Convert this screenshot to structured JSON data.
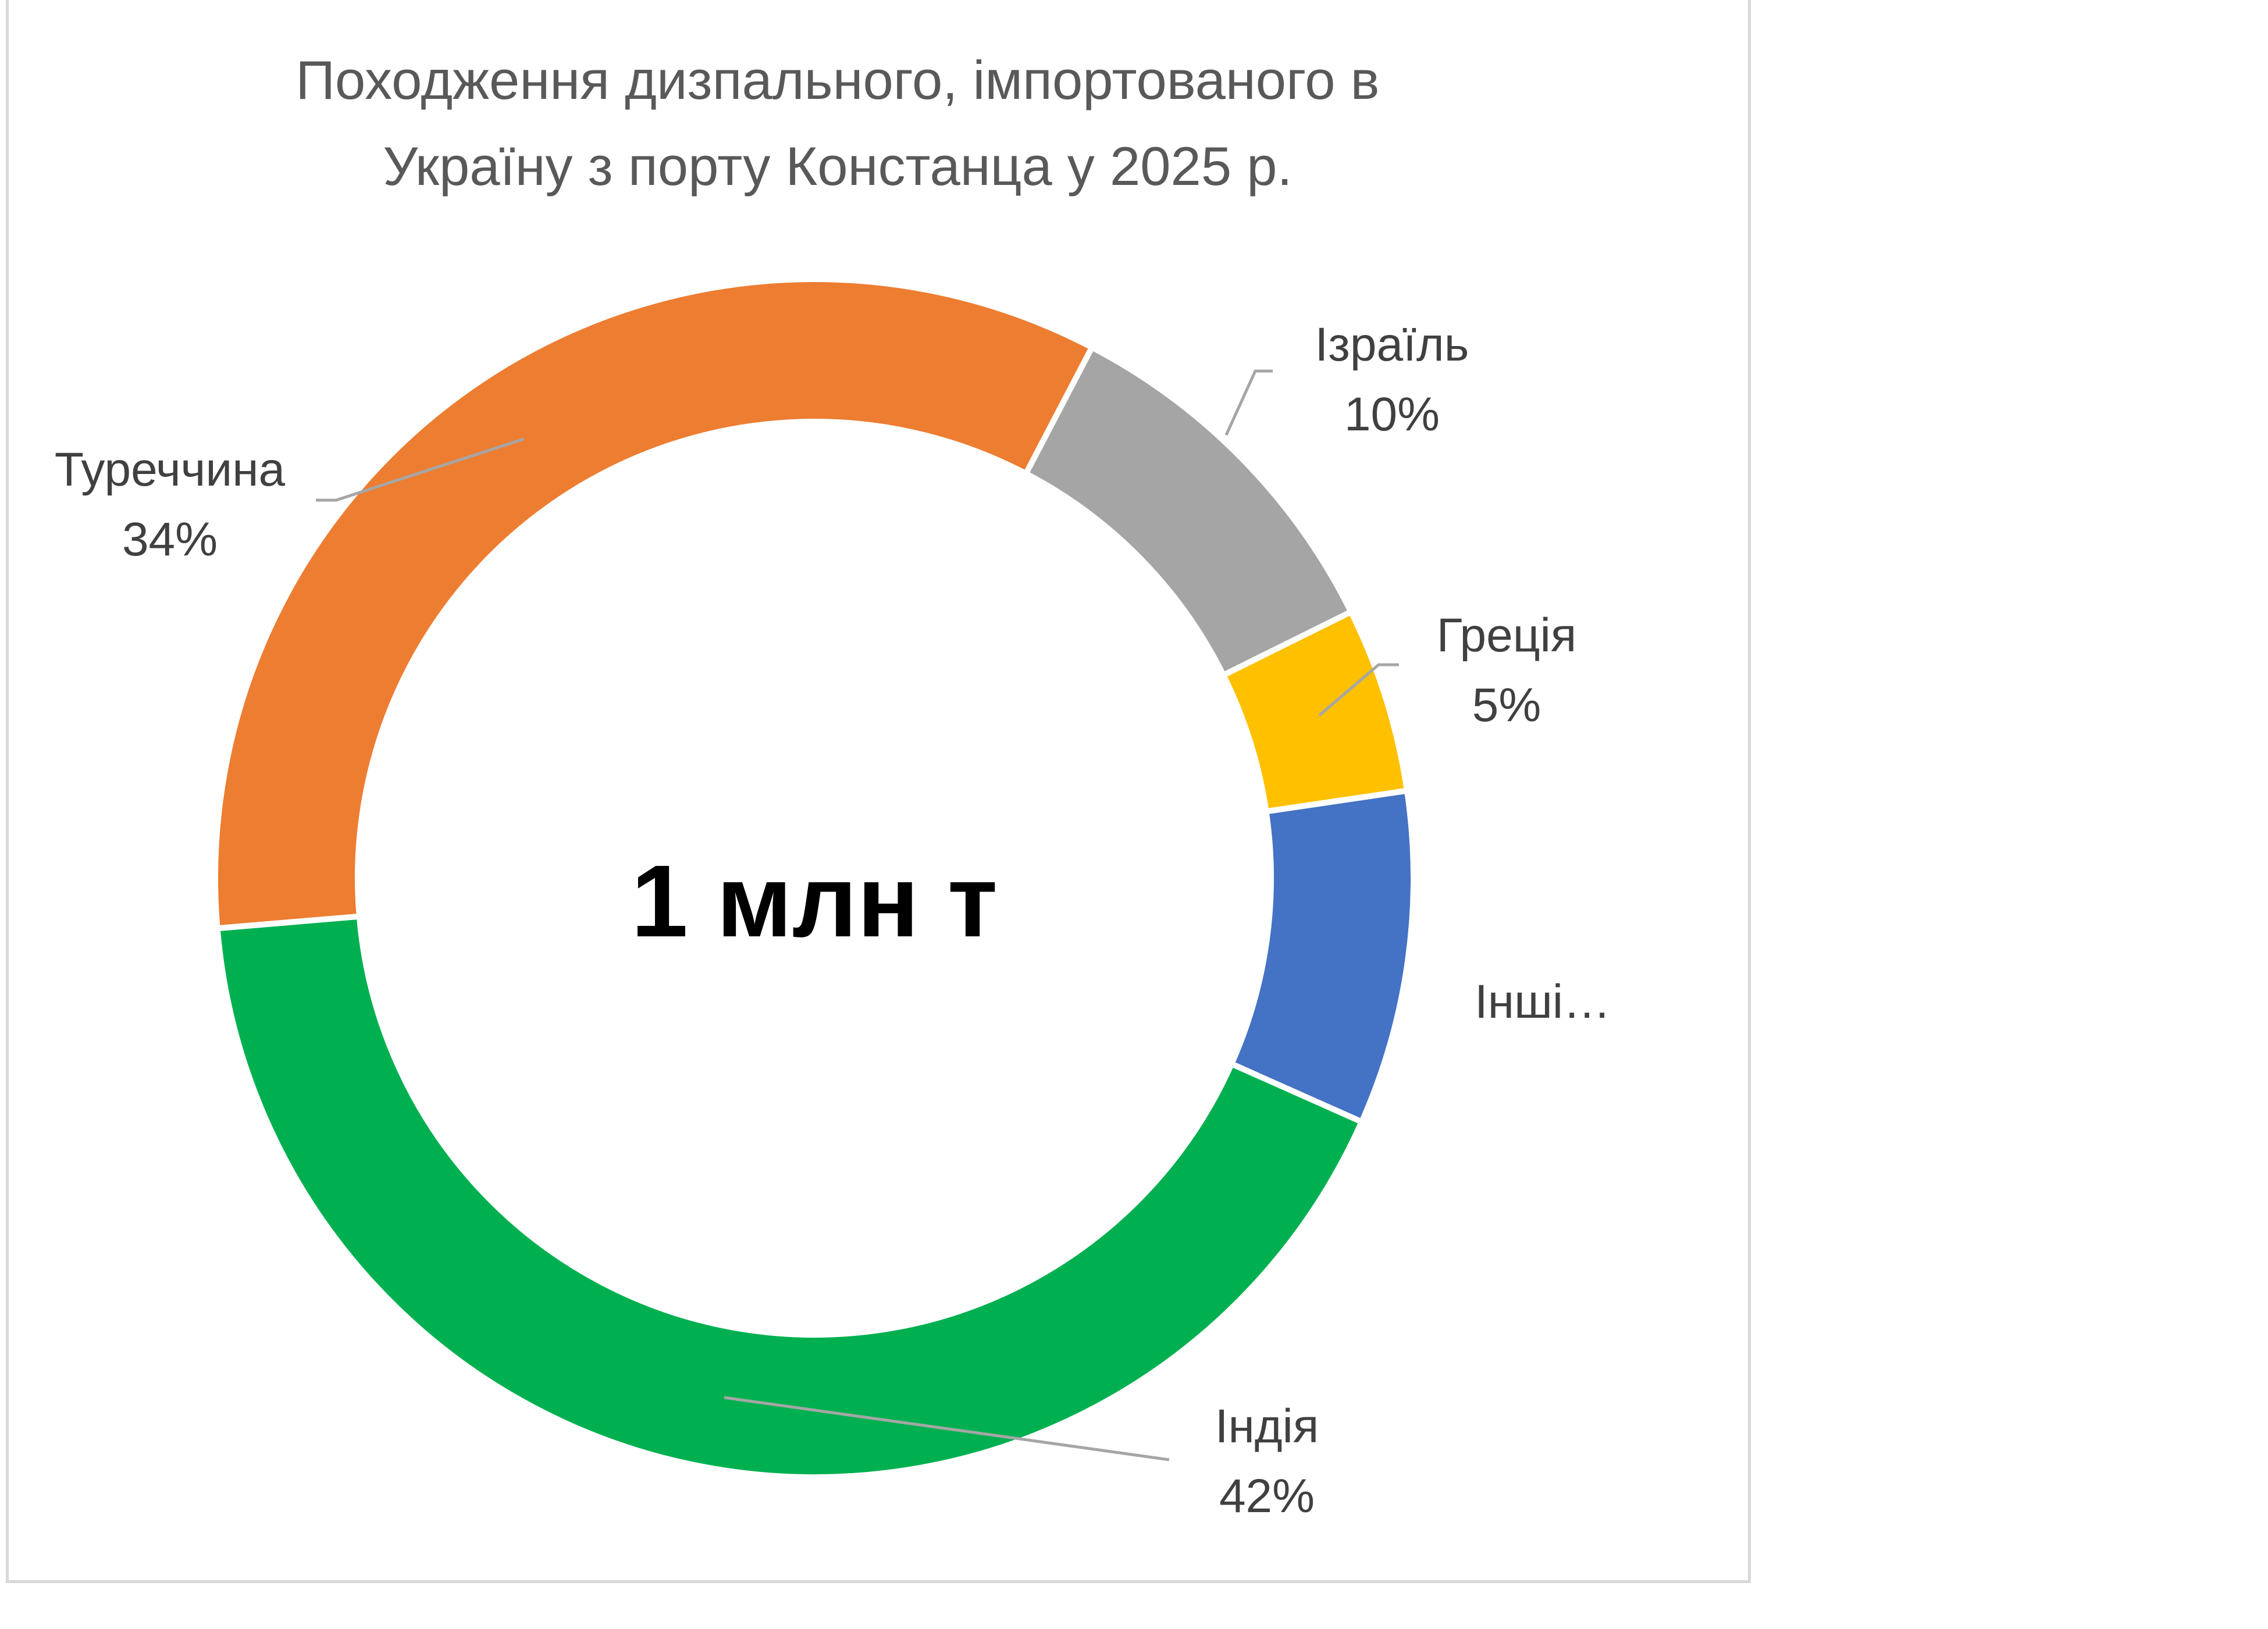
{
  "chart_data": {
    "type": "pie",
    "variant": "donut",
    "title_lines": [
      "Походження дизпального, імпортованого в",
      "Україну з порту Констанца у 2025 р."
    ],
    "center_label": "1 млн т",
    "start_angle_deg": 27.6,
    "direction": "clockwise",
    "slices": [
      {
        "name": "Ізраїль",
        "value": 10,
        "label": "10%",
        "color": "#a5a5a5"
      },
      {
        "name": "Греція",
        "value": 5,
        "label": "5%",
        "color": "#ffc000"
      },
      {
        "name": "Інші…",
        "value": 9,
        "label": "",
        "color": "#4472c4"
      },
      {
        "name": "Індія",
        "value": 42,
        "label": "42%",
        "color": "#00b050"
      },
      {
        "name": "Туреччина",
        "value": 34,
        "label": "34%",
        "color": "#ed7d31"
      }
    ]
  }
}
